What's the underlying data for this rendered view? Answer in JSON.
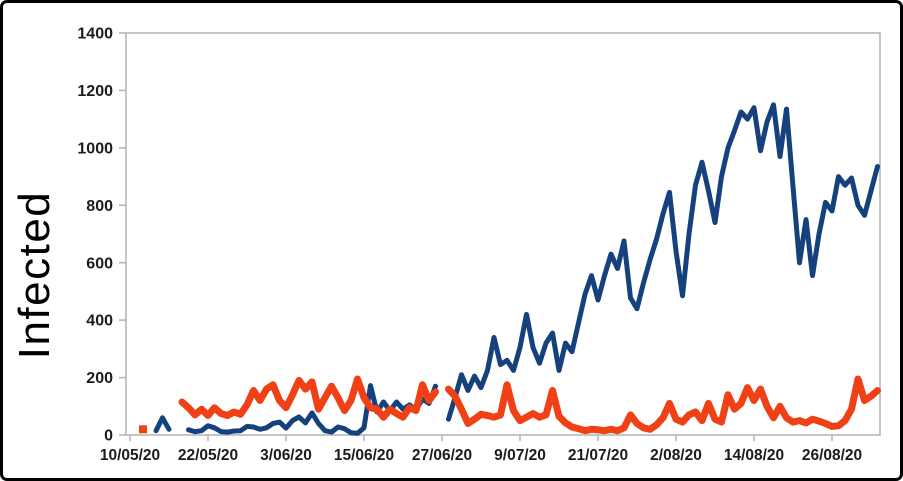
{
  "figure": {
    "ylabel": "Infected"
  },
  "chart_data": {
    "type": "line",
    "title": "",
    "xlabel": "",
    "ylabel": "Infected",
    "x_unit": "date dd/mm/yy, daily points from 10/05/20 to 02/09/20",
    "ylim": [
      0,
      1400
    ],
    "y_ticks": [
      0,
      200,
      400,
      600,
      800,
      1000,
      1200,
      1400
    ],
    "x_tick_labels": [
      "10/05/20",
      "22/05/20",
      "3/06/20",
      "15/06/20",
      "27/06/20",
      "9/07/20",
      "21/07/20",
      "2/08/20",
      "14/08/20",
      "26/08/20"
    ],
    "x_tick_day_offsets": [
      0,
      12,
      24,
      36,
      48,
      60,
      72,
      84,
      96,
      108
    ],
    "grid": "none",
    "legend": "none",
    "axis_color": "#b2b2b2",
    "tick_text_color": "#1c1c1c",
    "series": [
      {
        "name": "blue-line",
        "color": "#15417c",
        "stroke_width": 5,
        "values": [
          null,
          null,
          null,
          null,
          15,
          60,
          20,
          null,
          null,
          18,
          12,
          15,
          32,
          25,
          12,
          10,
          14,
          15,
          30,
          28,
          20,
          25,
          40,
          45,
          24,
          50,
          63,
          42,
          77,
          40,
          15,
          10,
          28,
          22,
          8,
          6,
          25,
          172,
          80,
          115,
          84,
          115,
          90,
          105,
          88,
          125,
          110,
          170,
          null,
          55,
          130,
          210,
          155,
          205,
          165,
          225,
          340,
          245,
          260,
          225,
          305,
          420,
          305,
          250,
          320,
          355,
          225,
          320,
          290,
          390,
          490,
          555,
          470,
          555,
          630,
          580,
          676,
          477,
          440,
          530,
          610,
          682,
          770,
          845,
          640,
          485,
          700,
          870,
          950,
          850,
          740,
          900,
          1000,
          1060,
          1125,
          1100,
          1140,
          990,
          1090,
          1150,
          970,
          1135,
          865,
          600,
          750,
          555,
          700,
          810,
          780,
          900,
          870,
          895,
          800,
          765,
          850,
          935
        ]
      },
      {
        "name": "orange-line",
        "color": "#ef4115",
        "stroke_width": 7,
        "values": [
          null,
          null,
          20,
          null,
          null,
          null,
          null,
          null,
          115,
          95,
          70,
          90,
          68,
          95,
          75,
          68,
          80,
          72,
          105,
          155,
          120,
          160,
          175,
          120,
          95,
          140,
          190,
          160,
          185,
          90,
          130,
          170,
          130,
          85,
          120,
          195,
          130,
          95,
          90,
          62,
          90,
          75,
          62,
          95,
          85,
          175,
          120,
          150,
          null,
          160,
          135,
          90,
          40,
          55,
          72,
          68,
          62,
          70,
          175,
          85,
          50,
          62,
          75,
          62,
          70,
          155,
          65,
          42,
          28,
          22,
          15,
          20,
          18,
          15,
          20,
          15,
          25,
          70,
          40,
          25,
          20,
          35,
          60,
          110,
          55,
          45,
          70,
          80,
          50,
          110,
          55,
          45,
          140,
          90,
          110,
          165,
          120,
          160,
          100,
          60,
          100,
          60,
          45,
          50,
          42,
          55,
          48,
          40,
          30,
          32,
          50,
          90,
          195,
          120,
          135,
          155
        ]
      }
    ]
  }
}
